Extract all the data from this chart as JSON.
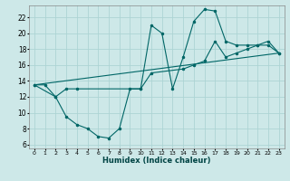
{
  "xlabel": "Humidex (Indice chaleur)",
  "bg_color": "#cde8e8",
  "grid_color": "#add4d4",
  "line_color": "#006666",
  "xlim": [
    -0.5,
    23.5
  ],
  "ylim": [
    5.5,
    23.5
  ],
  "yticks": [
    6,
    8,
    10,
    12,
    14,
    16,
    18,
    20,
    22
  ],
  "xticks": [
    0,
    1,
    2,
    3,
    4,
    5,
    6,
    7,
    8,
    9,
    10,
    11,
    12,
    13,
    14,
    15,
    16,
    17,
    18,
    19,
    20,
    21,
    22,
    23
  ],
  "series1_x": [
    0,
    1,
    2,
    3,
    4,
    5,
    6,
    7,
    8,
    9,
    10,
    11,
    12,
    13,
    14,
    15,
    16,
    17,
    18,
    19,
    20,
    21,
    22,
    23
  ],
  "series1_y": [
    13.5,
    13.5,
    12.0,
    9.5,
    8.5,
    8.0,
    7.0,
    6.8,
    8.0,
    13.0,
    13.0,
    21.0,
    20.0,
    13.0,
    17.0,
    21.5,
    23.0,
    22.8,
    19.0,
    18.5,
    18.5,
    18.5,
    18.5,
    17.5
  ],
  "series2_x": [
    0,
    2,
    3,
    4,
    10,
    11,
    14,
    15,
    16,
    17,
    18,
    19,
    20,
    21,
    22,
    23
  ],
  "series2_y": [
    13.5,
    12.0,
    13.0,
    13.0,
    13.0,
    15.0,
    15.5,
    16.0,
    16.5,
    19.0,
    17.0,
    17.5,
    18.0,
    18.5,
    19.0,
    17.5
  ],
  "series3_x": [
    0,
    23
  ],
  "series3_y": [
    13.5,
    17.5
  ]
}
